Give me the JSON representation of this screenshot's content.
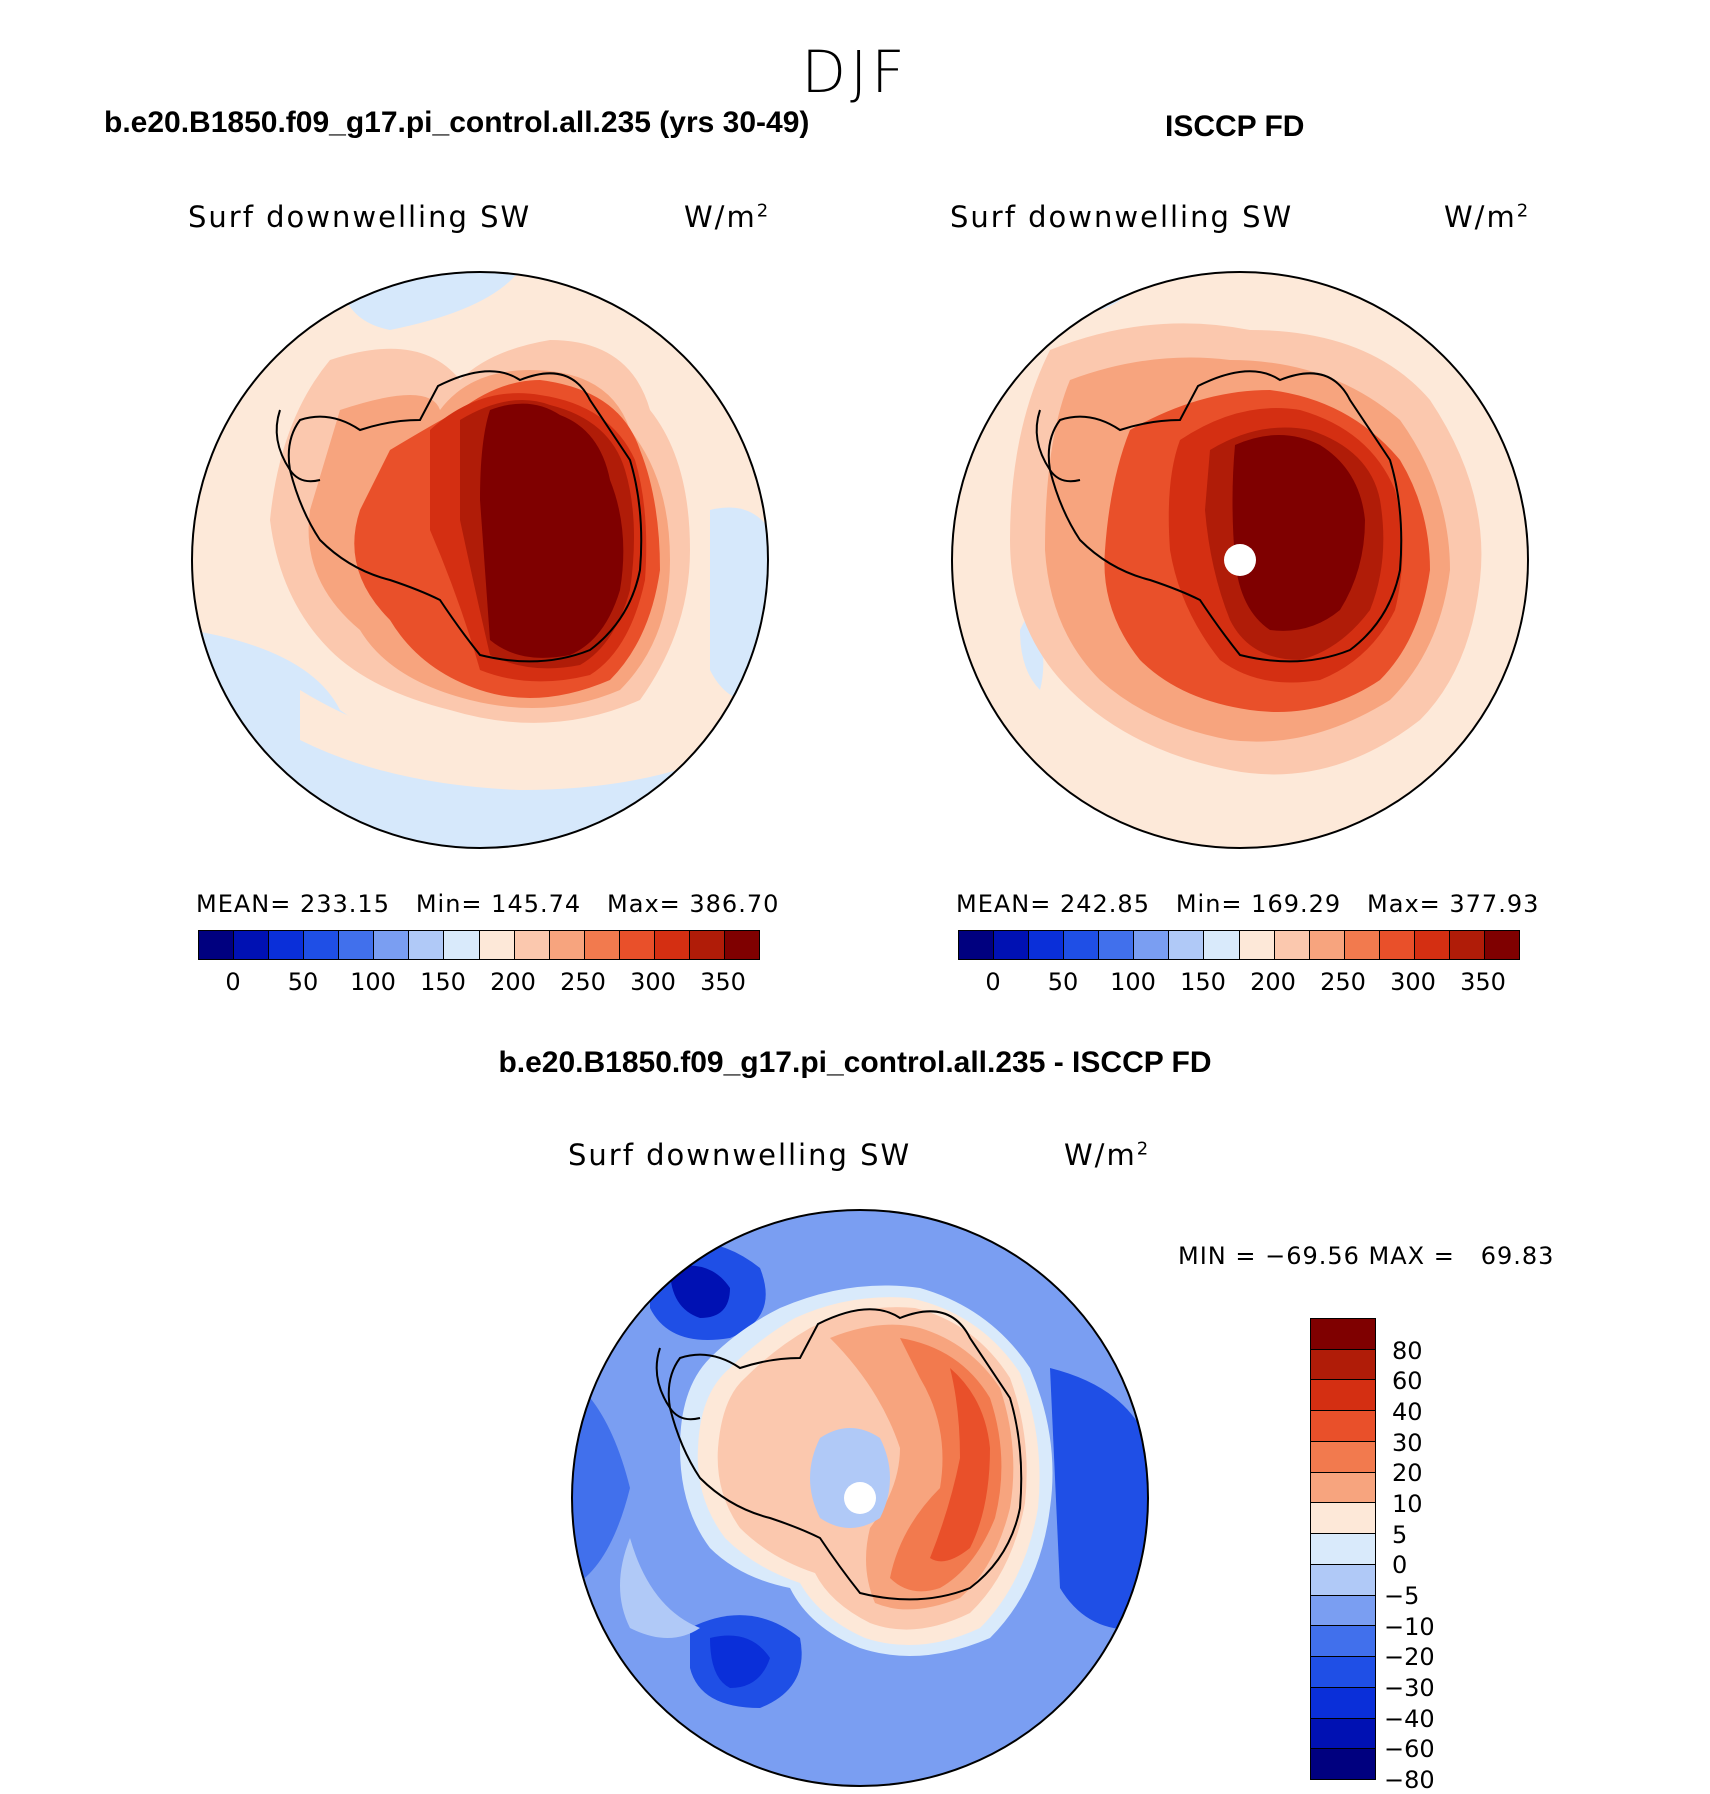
{
  "season": "DJF",
  "left_panel": {
    "title": "b.e20.B1850.f09_g17.pi_control.all.235 (yrs 30-49)",
    "variable": "Surf downwelling SW",
    "units_base": "W/m",
    "units_exp": "2",
    "stats": "MEAN= 233.15   Min= 145.74   Max= 386.70",
    "mean": 233.15,
    "min": 145.74,
    "max": 386.7
  },
  "right_panel": {
    "title": "ISCCP FD",
    "variable": "Surf downwelling SW",
    "units_base": "W/m",
    "units_exp": "2",
    "stats": "MEAN= 242.85   Min= 169.29   Max= 377.93",
    "mean": 242.85,
    "min": 169.29,
    "max": 377.93
  },
  "abs_colorbar": {
    "colors": [
      "#00007f",
      "#0011b3",
      "#0a2fd9",
      "#1f4fe6",
      "#4170ec",
      "#7a9ef2",
      "#b0c9f7",
      "#d9eafb",
      "#fde8d8",
      "#fbc8ae",
      "#f7a47e",
      "#f27a4e",
      "#e9502a",
      "#d42f12",
      "#b01c08",
      "#7f0000"
    ],
    "tick_labels": [
      "0",
      "50",
      "100",
      "150",
      "200",
      "250",
      "300",
      "350"
    ]
  },
  "diff_panel": {
    "title": "b.e20.B1850.f09_g17.pi_control.all.235 - ISCCP FD",
    "variable": "Surf downwelling SW",
    "units_base": "W/m",
    "units_exp": "2",
    "minmax": "MIN = −69.56 MAX =   69.83",
    "min": -69.56,
    "max": 69.83
  },
  "diff_colorbar": {
    "colors": [
      "#7f0000",
      "#b01c08",
      "#d42f12",
      "#e9502a",
      "#f27a4e",
      "#f7a47e",
      "#fde8d8",
      "#d9eafb",
      "#b0c9f7",
      "#7a9ef2",
      "#4170ec",
      "#1f4fe6",
      "#0a2fd9",
      "#0011b3",
      "#00007f"
    ],
    "labels": [
      "80",
      "60",
      "40",
      "30",
      "20",
      "10",
      "5",
      "0",
      "−5",
      "−10",
      "−20",
      "−30",
      "−40",
      "−60",
      "−80"
    ]
  },
  "colors": {
    "ocean_light_blue": "#d6e8fb",
    "ocean_peach": "#fde9d9",
    "coast": "#000000"
  }
}
